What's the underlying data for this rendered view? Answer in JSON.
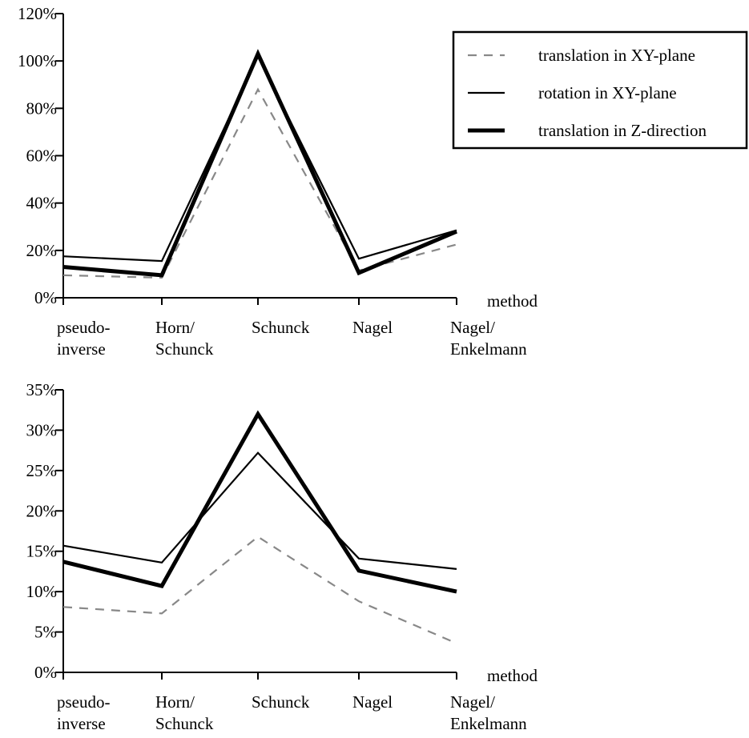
{
  "chart_data": [
    {
      "type": "line",
      "title": "",
      "xlabel": "method",
      "ylabel": "",
      "categories": [
        [
          "pseudo-",
          "inverse"
        ],
        [
          "Horn/",
          "Schunck"
        ],
        [
          "Schunck"
        ],
        [
          "Nagel"
        ],
        [
          "Nagel/",
          "Enkelmann"
        ]
      ],
      "ylim": [
        0,
        120
      ],
      "yticks": [
        0,
        20,
        40,
        60,
        80,
        100,
        120
      ],
      "ytick_labels": [
        "0%",
        "20%",
        "40%",
        "60%",
        "80%",
        "100%",
        "120%"
      ],
      "grid": false,
      "legend": "top-right",
      "series": [
        {
          "name": "translation in XY-plane",
          "style": "dashed",
          "color": "#888888",
          "values": [
            9.5,
            8.5,
            88,
            11.5,
            22.5
          ]
        },
        {
          "name": "rotation in XY-plane",
          "style": "thin",
          "color": "#000000",
          "values": [
            17.5,
            15.5,
            102,
            16.5,
            28.5
          ]
        },
        {
          "name": "translation in Z-direction",
          "style": "thick",
          "color": "#000000",
          "values": [
            13,
            9.5,
            103,
            10.5,
            28
          ]
        }
      ]
    },
    {
      "type": "line",
      "title": "",
      "xlabel": "method",
      "ylabel": "",
      "categories": [
        [
          "pseudo-",
          "inverse"
        ],
        [
          "Horn/",
          "Schunck"
        ],
        [
          "Schunck"
        ],
        [
          "Nagel"
        ],
        [
          "Nagel/",
          "Enkelmann"
        ]
      ],
      "ylim": [
        0,
        35
      ],
      "yticks": [
        0,
        5,
        10,
        15,
        20,
        25,
        30,
        35
      ],
      "ytick_labels": [
        "0%",
        "5%",
        "10%",
        "15%",
        "20%",
        "25%",
        "30%",
        "35%"
      ],
      "grid": false,
      "legend": "none",
      "series": [
        {
          "name": "translation in XY-plane",
          "style": "dashed",
          "color": "#888888",
          "values": [
            8.1,
            7.3,
            16.8,
            8.8,
            3.6
          ]
        },
        {
          "name": "rotation in XY-plane",
          "style": "thin",
          "color": "#000000",
          "values": [
            15.7,
            13.6,
            27.2,
            14.1,
            12.8
          ]
        },
        {
          "name": "translation in Z-direction",
          "style": "thick",
          "color": "#000000",
          "values": [
            13.7,
            10.7,
            32.0,
            12.6,
            10.0
          ]
        }
      ]
    }
  ]
}
